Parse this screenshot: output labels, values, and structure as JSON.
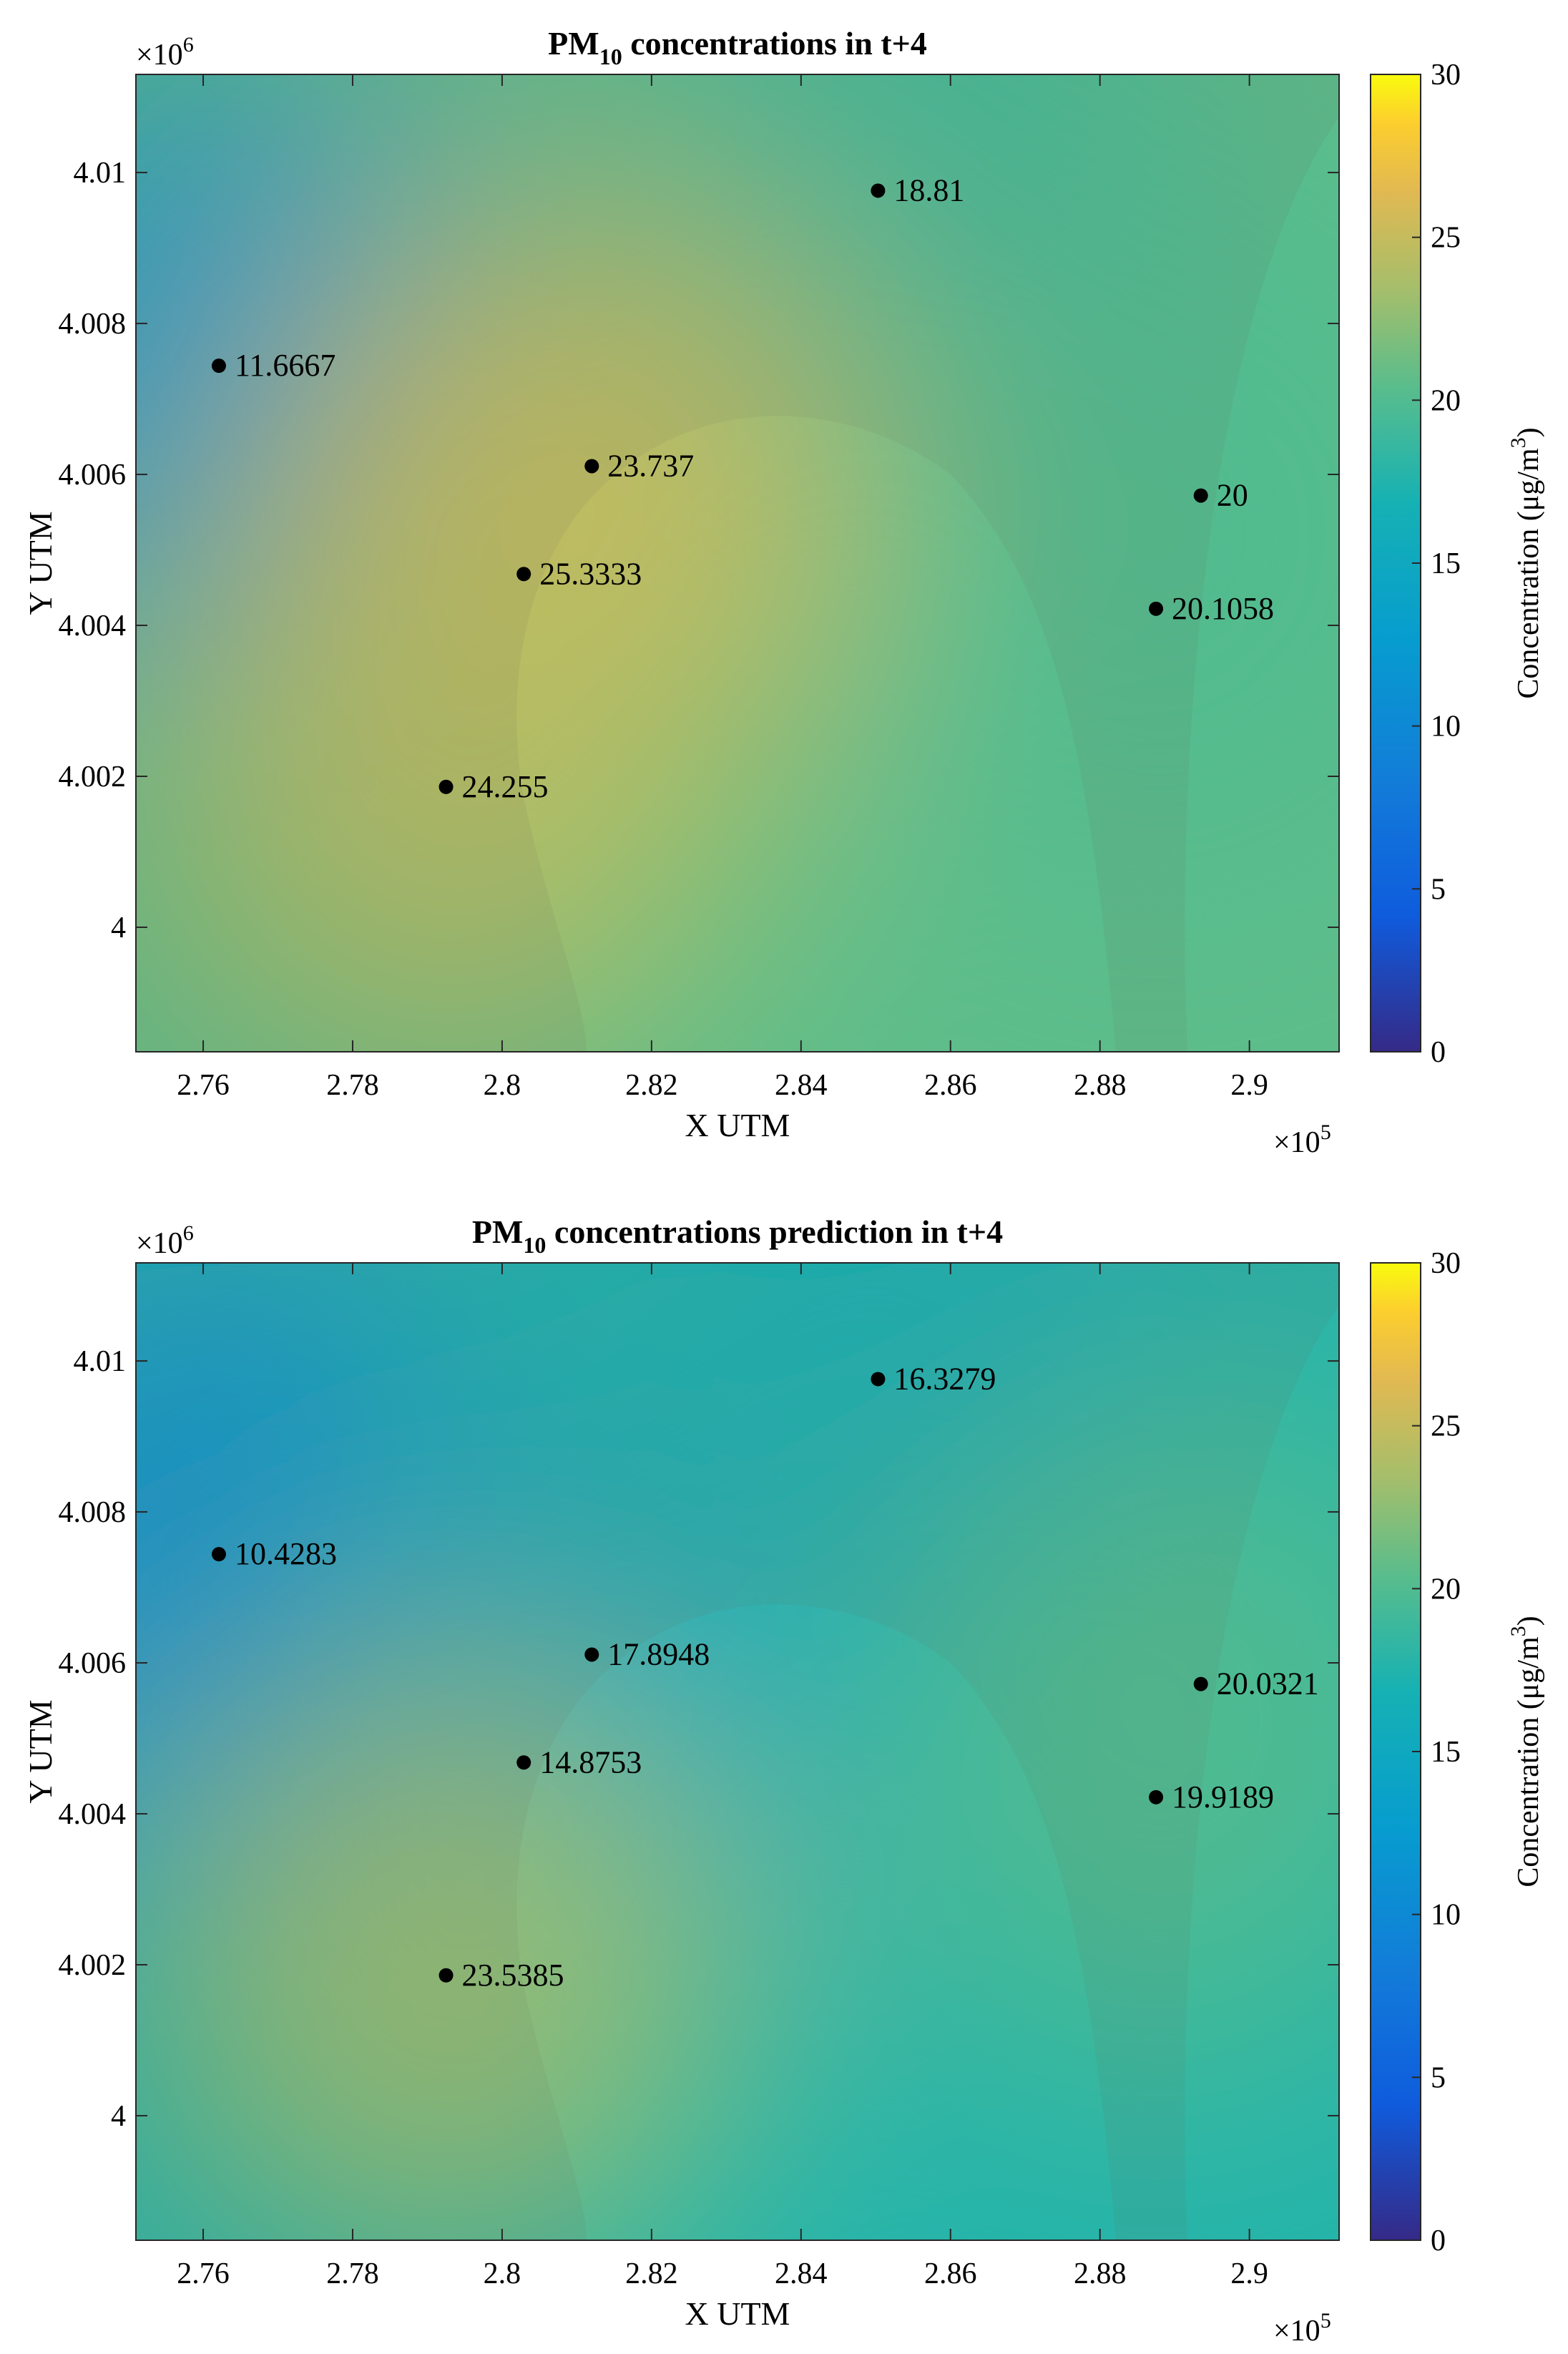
{
  "chart_data": [
    {
      "type": "heatmap",
      "title": "PM10 concentrations in t+4",
      "title_parts": {
        "prefix": "PM",
        "subscript": "10",
        "suffix": " concentrations in t+4"
      },
      "xlabel": "X UTM",
      "ylabel": "Y UTM",
      "x_multiplier": "×10",
      "x_multiplier_exp": "5",
      "y_multiplier": "×10",
      "y_multiplier_exp": "6",
      "xlim": [
        2.751,
        2.912
      ],
      "ylim": [
        3.99835,
        4.0113
      ],
      "xticks": [
        2.76,
        2.78,
        2.8,
        2.82,
        2.84,
        2.86,
        2.88,
        2.9
      ],
      "xtick_labels": [
        "2.76",
        "2.78",
        "2.8",
        "2.82",
        "2.84",
        "2.86",
        "2.88",
        "2.9"
      ],
      "yticks": [
        4.0,
        4.002,
        4.004,
        4.006,
        4.008,
        4.01
      ],
      "ytick_labels": [
        "4",
        "4.002",
        "4.004",
        "4.006",
        "4.008",
        "4.01"
      ],
      "colorbar": {
        "label": "Concentration (μg/m",
        "label_exp": "3",
        "label_close": ")",
        "lim": [
          0,
          30
        ],
        "ticks": [
          "0",
          "5",
          "10",
          "15",
          "20",
          "25",
          "30"
        ],
        "colormap": "parula"
      },
      "background": "satellite image of bay (Bay of Algeciras) overlaid with interpolated concentration field",
      "points": [
        {
          "x": 2.7621,
          "y": 4.00744,
          "value": 11.6667,
          "label": "11.6667"
        },
        {
          "x": 2.8503,
          "y": 4.00976,
          "value": 18.81,
          "label": "18.81"
        },
        {
          "x": 2.812,
          "y": 4.00611,
          "value": 23.737,
          "label": "23.737"
        },
        {
          "x": 2.8029,
          "y": 4.00468,
          "value": 25.3333,
          "label": "25.3333"
        },
        {
          "x": 2.7925,
          "y": 4.00186,
          "value": 24.255,
          "label": "24.255"
        },
        {
          "x": 2.8935,
          "y": 4.00572,
          "value": 20,
          "label": "20"
        },
        {
          "x": 2.8875,
          "y": 4.00422,
          "value": 20.1058,
          "label": "20.1058"
        }
      ]
    },
    {
      "type": "heatmap",
      "title": "PM10 concentrations prediction in t+4",
      "title_parts": {
        "prefix": "PM",
        "subscript": "10",
        "suffix": " concentrations prediction in t+4"
      },
      "xlabel": "X UTM",
      "ylabel": "Y UTM",
      "x_multiplier": "×10",
      "x_multiplier_exp": "5",
      "y_multiplier": "×10",
      "y_multiplier_exp": "6",
      "xlim": [
        2.751,
        2.912
      ],
      "ylim": [
        3.99835,
        4.0113
      ],
      "xticks": [
        2.76,
        2.78,
        2.8,
        2.82,
        2.84,
        2.86,
        2.88,
        2.9
      ],
      "xtick_labels": [
        "2.76",
        "2.78",
        "2.8",
        "2.82",
        "2.84",
        "2.86",
        "2.88",
        "2.9"
      ],
      "yticks": [
        4.0,
        4.002,
        4.004,
        4.006,
        4.008,
        4.01
      ],
      "ytick_labels": [
        "4",
        "4.002",
        "4.004",
        "4.006",
        "4.008",
        "4.01"
      ],
      "colorbar": {
        "label": "Concentration (μg/m",
        "label_exp": "3",
        "label_close": ")",
        "lim": [
          0,
          30
        ],
        "ticks": [
          "0",
          "5",
          "10",
          "15",
          "20",
          "25",
          "30"
        ],
        "colormap": "parula"
      },
      "background": "satellite image of bay (Bay of Algeciras) overlaid with interpolated concentration field",
      "points": [
        {
          "x": 2.7621,
          "y": 4.00744,
          "value": 10.4283,
          "label": "10.4283"
        },
        {
          "x": 2.8503,
          "y": 4.00976,
          "value": 16.3279,
          "label": "16.3279"
        },
        {
          "x": 2.812,
          "y": 4.00611,
          "value": 17.8948,
          "label": "17.8948"
        },
        {
          "x": 2.8029,
          "y": 4.00468,
          "value": 14.8753,
          "label": "14.8753"
        },
        {
          "x": 2.7925,
          "y": 4.00186,
          "value": 23.5385,
          "label": "23.5385"
        },
        {
          "x": 2.8935,
          "y": 4.00572,
          "value": 20.0321,
          "label": "20.0321"
        },
        {
          "x": 2.8875,
          "y": 4.00422,
          "value": 19.9189,
          "label": "19.9189"
        }
      ]
    }
  ]
}
